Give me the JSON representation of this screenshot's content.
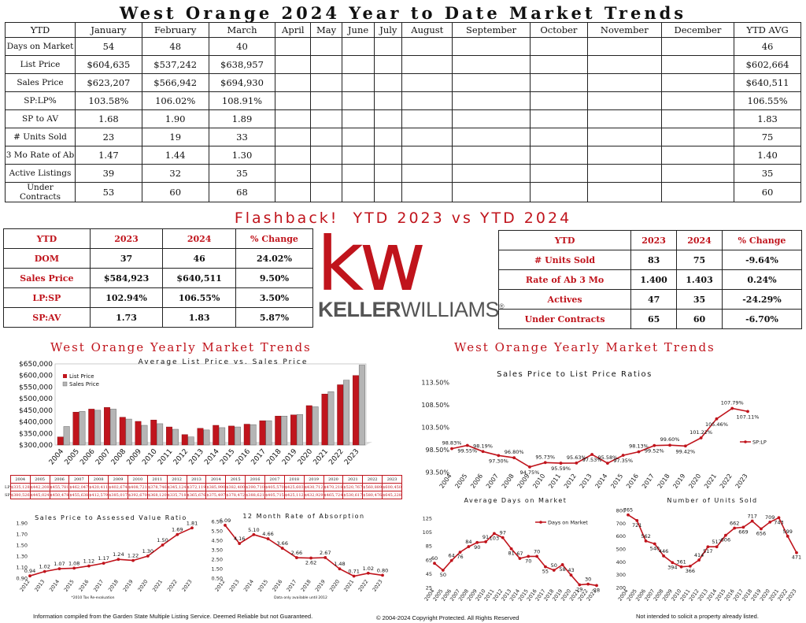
{
  "title": "West Orange 2024 Year to Date Market Trends",
  "ytd_table": {
    "headers": [
      "YTD",
      "January",
      "February",
      "March",
      "April",
      "May",
      "June",
      "July",
      "August",
      "September",
      "October",
      "November",
      "December",
      "YTD AVG"
    ],
    "rows": [
      {
        "label": "Days on Market",
        "jan": "54",
        "feb": "48",
        "mar": "40",
        "avg": "46"
      },
      {
        "label": "List Price",
        "jan": "$604,635",
        "feb": "$537,242",
        "mar": "$638,957",
        "avg": "$602,664"
      },
      {
        "label": "Sales Price",
        "jan": "$623,207",
        "feb": "$566,942",
        "mar": "$694,930",
        "avg": "$640,511"
      },
      {
        "label": "SP:LP%",
        "jan": "103.58%",
        "feb": "106.02%",
        "mar": "108.91%",
        "avg": "106.55%"
      },
      {
        "label": "SP to AV",
        "jan": "1.68",
        "feb": "1.90",
        "mar": "1.89",
        "avg": "1.83"
      },
      {
        "label": "# Units Sold",
        "jan": "23",
        "feb": "19",
        "mar": "33",
        "avg": "75"
      },
      {
        "label": "3 Mo Rate of Ab",
        "jan": "1.47",
        "feb": "1.44",
        "mar": "1.30",
        "avg": "1.40"
      },
      {
        "label": "Active Listings",
        "jan": "39",
        "feb": "32",
        "mar": "35",
        "avg": "35"
      },
      {
        "label": "Under Contracts",
        "jan": "53",
        "feb": "60",
        "mar": "68",
        "avg": "60"
      }
    ]
  },
  "flashback_title": "Flashback!  YTD 2023 vs YTD 2024",
  "compare_left": {
    "headers": [
      "YTD",
      "2023",
      "2024",
      "% Change"
    ],
    "rows": [
      [
        "DOM",
        "37",
        "46",
        "24.02%"
      ],
      [
        "Sales Price",
        "$584,923",
        "$640,511",
        "9.50%"
      ],
      [
        "LP:SP",
        "102.94%",
        "106.55%",
        "3.50%"
      ],
      [
        "SP:AV",
        "1.73",
        "1.83",
        "5.87%"
      ]
    ]
  },
  "compare_right": {
    "headers": [
      "YTD",
      "2023",
      "2024",
      "% Change"
    ],
    "rows": [
      [
        "# Units Sold",
        "83",
        "75",
        "-9.64%"
      ],
      [
        "Rate of Ab 3 Mo",
        "1.400",
        "1.403",
        "0.24%"
      ],
      [
        "Actives",
        "47",
        "35",
        "-24.29%"
      ],
      [
        "Under Contracts",
        "65",
        "60",
        "-6.70%"
      ]
    ]
  },
  "logo": {
    "letters": "kw",
    "name_bold": "KELLER",
    "name_light": "WILLIAMS",
    "mark": "®"
  },
  "section_left_title": "West Orange Yearly Market Trends",
  "section_right_title": "West Orange Yearly Market Trends",
  "colors": {
    "red": "#c0141c",
    "gray": "#9a9a9a"
  },
  "chart_data": [
    {
      "type": "bar",
      "title": "Average List Price vs. Sales Price",
      "categories": [
        "2004",
        "2005",
        "2006",
        "2007",
        "2008",
        "2009",
        "2010",
        "2011",
        "2012",
        "2013",
        "2014",
        "2015",
        "2016",
        "2017",
        "2018",
        "2019",
        "2020",
        "2021",
        "2022",
        "2023"
      ],
      "series": [
        {
          "name": "List Price",
          "values": [
            335000,
            442000,
            455000,
            462000,
            420000,
            402000,
            408000,
            378000,
            345000,
            372000,
            385000,
            382000,
            390000,
            405000,
            425000,
            430000,
            470000,
            520000,
            560000,
            600000
          ]
        },
        {
          "name": "Sales Price",
          "values": [
            380000,
            445000,
            450000,
            455000,
            412000,
            385000,
            392000,
            368000,
            335000,
            365000,
            375000,
            378000,
            388000,
            405000,
            425000,
            432000,
            465000,
            530000,
            580000,
            645000
          ]
        }
      ],
      "yticks": [
        "$300,000",
        "$350,000",
        "$400,000",
        "$450,000",
        "$500,000",
        "$550,000",
        "$600,000",
        "$650,000"
      ],
      "ylim": [
        300000,
        650000
      ],
      "legend": [
        "List Price",
        "Sales Price"
      ]
    },
    {
      "type": "line",
      "title": "Sales Price to List Price Ratios",
      "x": [
        "2004",
        "2005",
        "2006",
        "2007",
        "2008",
        "2009",
        "2010",
        "2011",
        "2012",
        "2013",
        "2014",
        "2015",
        "2016",
        "2017",
        "2018",
        "2019",
        "2020",
        "2021",
        "2022",
        "2023"
      ],
      "values": [
        98.83,
        99.55,
        98.19,
        97.3,
        96.8,
        94.75,
        95.73,
        95.59,
        95.63,
        97.53,
        95.58,
        97.35,
        98.13,
        99.52,
        99.6,
        99.42,
        101.22,
        105.46,
        107.79,
        107.11
      ],
      "labels": [
        "98.83%",
        "99.55%",
        "98.19%",
        "97.30%",
        "96.80%",
        "94.75%",
        "95.73%",
        "95.59%",
        "95.63%",
        "97.53%",
        "95.58%",
        "97.35%",
        "98.13%",
        "99.52%",
        "99.60%",
        "99.42%",
        "101.22%",
        "105.46%",
        "107.79%",
        "107.11%"
      ],
      "yticks": [
        "93.50%",
        "98.50%",
        "103.50%",
        "108.50%",
        "113.50%"
      ],
      "ylim": [
        93.5,
        113.5
      ],
      "legend": "SP:LP"
    },
    {
      "type": "line",
      "title": "Sales Price to Assessed Value Ratio",
      "x": [
        "2012",
        "2013",
        "2014",
        "2015",
        "2016",
        "2017",
        "2018",
        "2019",
        "2020",
        "2021",
        "2022",
        "2023"
      ],
      "values": [
        0.94,
        1.02,
        1.07,
        1.08,
        1.12,
        1.17,
        1.24,
        1.22,
        1.3,
        1.5,
        1.69,
        1.81
      ],
      "labels": [
        "0.94",
        "1.02",
        "1.07",
        "1.08",
        "1.12",
        "1.17",
        "1.24",
        "1.22",
        "1.30",
        "1.50",
        "1.69",
        "1.81"
      ],
      "yticks": [
        "0.90",
        "1.10",
        "1.30",
        "1.50",
        "1.70",
        "1.90"
      ],
      "ylim": [
        0.9,
        1.9
      ]
    },
    {
      "type": "line",
      "title": "12 Month Rate of Absorption",
      "x": [
        "2012",
        "2013",
        "2014",
        "2015",
        "2016",
        "2017",
        "2018",
        "2019",
        "2020",
        "2021",
        "2022",
        "2023"
      ],
      "values": [
        6.09,
        4.16,
        5.1,
        4.66,
        3.66,
        2.66,
        2.62,
        2.67,
        1.48,
        0.71,
        1.02,
        0.8
      ],
      "labels": [
        "6.09",
        "4.16",
        "5.10",
        "4.66",
        "3.66",
        "2.66",
        "2.62",
        "2.67",
        "1.48",
        "0.71",
        "1.02",
        "0.80"
      ],
      "yticks": [
        "0.50",
        "1.50",
        "2.50",
        "3.50",
        "4.50",
        "5.50",
        "6.50"
      ],
      "ylim": [
        0.5,
        6.5
      ]
    },
    {
      "type": "line",
      "title": "Average Days on Market",
      "x": [
        "2004",
        "2005",
        "2006",
        "2007",
        "2008",
        "2009",
        "2010",
        "2011",
        "2012",
        "2013",
        "2014",
        "2015",
        "2016",
        "2017",
        "2018",
        "2019",
        "2020",
        "2021",
        "2022",
        "2023"
      ],
      "values": [
        60,
        50,
        64,
        76,
        84,
        90,
        91,
        103,
        97,
        81,
        67,
        70,
        70,
        55,
        50,
        58,
        43,
        29,
        30,
        28
      ],
      "labels": [
        "60",
        "50",
        "64",
        "76",
        "84",
        "90",
        "91",
        "103",
        "97",
        "81",
        "67",
        "70",
        "70",
        "55",
        "50",
        "58",
        "43",
        "29",
        "30",
        "28"
      ],
      "yticks": [
        "25",
        "45",
        "65",
        "85",
        "105",
        "125"
      ],
      "ylim": [
        25,
        125
      ],
      "legend": "Days on Market"
    },
    {
      "type": "line",
      "title": "Number of Units Sold",
      "x": [
        "2004",
        "2005",
        "2006",
        "2007",
        "2008",
        "2009",
        "2010",
        "2011",
        "2012",
        "2013",
        "2014",
        "2015",
        "2016",
        "2017",
        "2018",
        "2019",
        "2020",
        "2021",
        "2022",
        "2023"
      ],
      "values": [
        765,
        721,
        562,
        540,
        446,
        394,
        361,
        366,
        414,
        517,
        517,
        606,
        662,
        669,
        717,
        656,
        709,
        743,
        599,
        471
      ],
      "labels": [
        "765",
        "721",
        "562",
        "540",
        "446",
        "394",
        "361",
        "366",
        "414",
        "517",
        "517",
        "606",
        "662",
        "669",
        "717",
        "656",
        "709",
        "743",
        "599",
        "471"
      ],
      "yticks": [
        "200",
        "300",
        "400",
        "500",
        "600",
        "700",
        "800"
      ],
      "ylim": [
        200,
        800
      ]
    }
  ],
  "mini_table": {
    "years": [
      "2004",
      "2005",
      "2006",
      "2007",
      "2008",
      "2009",
      "2010",
      "2011",
      "2012",
      "2013",
      "2014",
      "2015",
      "2016",
      "2017",
      "2018",
      "2019",
      "2020",
      "2021",
      "2022",
      "2023"
    ],
    "lp_label": "LP",
    "sp_label": "SP",
    "lp": [
      "$335,128",
      "$442,208",
      "$455,781",
      "$462,047",
      "$420,411",
      "$402,674",
      "$408,721",
      "$378,746",
      "$345,124",
      "$372,119",
      "$385,990",
      "$382,400",
      "$390,710",
      "$405,570",
      "$425,603",
      "$430,712",
      "$470,218",
      "$520,767",
      "$560,889",
      "$600,450"
    ],
    "sp": [
      "$380,526",
      "$445,024",
      "$450,478",
      "$455,638",
      "$412,579",
      "$385,017",
      "$392,670",
      "$368,120",
      "$335,718",
      "$365,676",
      "$375,497",
      "$378,472",
      "$388,621",
      "$405,715",
      "$425,112",
      "$432,929",
      "$465,724",
      "$530,617",
      "$580,476",
      "$645,228"
    ]
  },
  "notes": {
    "sp_av": "*2010 Tax Re-evaluation",
    "abs": "Data only available until 2012"
  },
  "footer": {
    "left": "Information compiled from the Garden State Multiple Listing Service.  Deemed Reliable but not Guaranteed.",
    "center": "© 2004-2024 Copyright Protected.  All Rights Reserved",
    "right": "Not intended to solicit a property already listed."
  }
}
